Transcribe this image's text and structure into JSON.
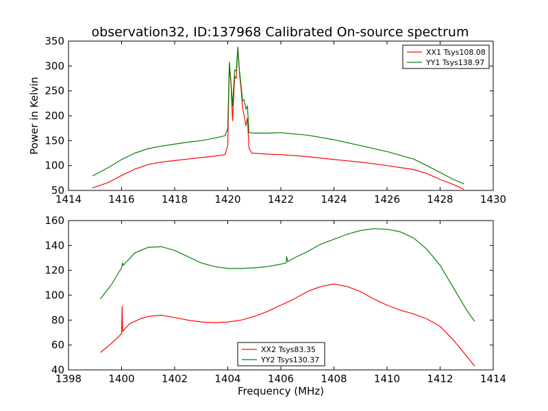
{
  "title": "observation32, ID:137968 Calibrated On-source spectrum",
  "chart_data": [
    {
      "type": "line",
      "xlabel": "",
      "ylabel": "Power in Kelvin",
      "xlim": [
        1414,
        1430
      ],
      "ylim": [
        50,
        350
      ],
      "xticks": [
        "1414",
        "1416",
        "1418",
        "1420",
        "1422",
        "1424",
        "1426",
        "1428",
        "1430"
      ],
      "yticks": [
        "50",
        "100",
        "150",
        "200",
        "250",
        "300",
        "350"
      ],
      "legend_position": "top-right",
      "series": [
        {
          "name": "XX1 Tsys108.08",
          "color": "#ff0000",
          "points": [
            [
              1414.9,
              55
            ],
            [
              1415.5,
              66
            ],
            [
              1416,
              80
            ],
            [
              1416.5,
              93
            ],
            [
              1417,
              102
            ],
            [
              1417.5,
              107
            ],
            [
              1418,
              110
            ],
            [
              1418.5,
              113
            ],
            [
              1419,
              116
            ],
            [
              1419.5,
              119
            ],
            [
              1419.9,
              122
            ],
            [
              1420.0,
              140
            ],
            [
              1420.06,
              300
            ],
            [
              1420.12,
              265
            ],
            [
              1420.18,
              190
            ],
            [
              1420.26,
              280
            ],
            [
              1420.32,
              275
            ],
            [
              1420.38,
              338
            ],
            [
              1420.44,
              285
            ],
            [
              1420.5,
              255
            ],
            [
              1420.56,
              215
            ],
            [
              1420.62,
              200
            ],
            [
              1420.68,
              180
            ],
            [
              1420.74,
              195
            ],
            [
              1420.8,
              135
            ],
            [
              1420.9,
              125
            ],
            [
              1421.5,
              123
            ],
            [
              1422,
              122
            ],
            [
              1423,
              118
            ],
            [
              1424,
              112
            ],
            [
              1425,
              107
            ],
            [
              1426,
              100
            ],
            [
              1427,
              92
            ],
            [
              1427.5,
              84
            ],
            [
              1428,
              72
            ],
            [
              1428.5,
              62
            ],
            [
              1428.9,
              52
            ]
          ]
        },
        {
          "name": "YY1 Tsys138.97",
          "color": "#008000",
          "points": [
            [
              1414.9,
              79
            ],
            [
              1415.5,
              96
            ],
            [
              1416,
              112
            ],
            [
              1416.5,
              125
            ],
            [
              1417,
              134
            ],
            [
              1417.5,
              139
            ],
            [
              1418,
              143
            ],
            [
              1418.5,
              147
            ],
            [
              1419,
              150
            ],
            [
              1419.5,
              155
            ],
            [
              1419.9,
              160
            ],
            [
              1420.0,
              175
            ],
            [
              1420.06,
              308
            ],
            [
              1420.12,
              270
            ],
            [
              1420.18,
              220
            ],
            [
              1420.26,
              292
            ],
            [
              1420.32,
              290
            ],
            [
              1420.38,
              338
            ],
            [
              1420.44,
              290
            ],
            [
              1420.5,
              262
            ],
            [
              1420.56,
              230
            ],
            [
              1420.62,
              232
            ],
            [
              1420.68,
              213
            ],
            [
              1420.74,
              220
            ],
            [
              1420.8,
              166
            ],
            [
              1421,
              165
            ],
            [
              1421.5,
              165
            ],
            [
              1422,
              166
            ],
            [
              1423,
              161
            ],
            [
              1424,
              152
            ],
            [
              1425,
              140
            ],
            [
              1426,
              128
            ],
            [
              1427,
              113
            ],
            [
              1427.5,
              100
            ],
            [
              1428,
              86
            ],
            [
              1428.5,
              72
            ],
            [
              1428.9,
              63
            ]
          ]
        }
      ]
    },
    {
      "type": "line",
      "xlabel": "Frequency (MHz)",
      "ylabel": "",
      "xlim": [
        1398,
        1414
      ],
      "ylim": [
        40,
        160
      ],
      "xticks": [
        "1398",
        "1400",
        "1402",
        "1404",
        "1406",
        "1408",
        "1410",
        "1412",
        "1414"
      ],
      "yticks": [
        "40",
        "60",
        "80",
        "100",
        "120",
        "140",
        "160"
      ],
      "legend_position": "bottom-center",
      "series": [
        {
          "name": "XX2 Tsys83.35",
          "color": "#ff0000",
          "points": [
            [
              1399.2,
              54
            ],
            [
              1399.6,
              61
            ],
            [
              1400,
              69
            ],
            [
              1400.02,
              91
            ],
            [
              1400.04,
              71
            ],
            [
              1400.3,
              77
            ],
            [
              1400.7,
              81
            ],
            [
              1401,
              83
            ],
            [
              1401.5,
              84
            ],
            [
              1402,
              82
            ],
            [
              1402.5,
              80
            ],
            [
              1403,
              78.5
            ],
            [
              1403.5,
              78
            ],
            [
              1404,
              78.5
            ],
            [
              1404.5,
              80
            ],
            [
              1405,
              83
            ],
            [
              1405.5,
              87
            ],
            [
              1406,
              92
            ],
            [
              1406.5,
              97
            ],
            [
              1407,
              103
            ],
            [
              1407.5,
              107
            ],
            [
              1408,
              109
            ],
            [
              1408.5,
              107
            ],
            [
              1409,
              103
            ],
            [
              1409.5,
              97
            ],
            [
              1410,
              92
            ],
            [
              1410.5,
              88
            ],
            [
              1411,
              85
            ],
            [
              1411.5,
              81
            ],
            [
              1412,
              75
            ],
            [
              1412.5,
              64
            ],
            [
              1413,
              51
            ],
            [
              1413.3,
              43
            ]
          ]
        },
        {
          "name": "YY2 Tsys130.37",
          "color": "#008000",
          "points": [
            [
              1399.2,
              97
            ],
            [
              1399.6,
              108
            ],
            [
              1400,
              122
            ],
            [
              1400.03,
              126
            ],
            [
              1400.06,
              124
            ],
            [
              1400.5,
              134
            ],
            [
              1401,
              138.5
            ],
            [
              1401.5,
              139
            ],
            [
              1402,
              136
            ],
            [
              1402.5,
              131
            ],
            [
              1403,
              126
            ],
            [
              1403.5,
              123
            ],
            [
              1404,
              121.5
            ],
            [
              1404.5,
              121.5
            ],
            [
              1405,
              122
            ],
            [
              1405.5,
              123
            ],
            [
              1406,
              125
            ],
            [
              1406.2,
              126
            ],
            [
              1406.22,
              131
            ],
            [
              1406.26,
              127
            ],
            [
              1406.5,
              130
            ],
            [
              1407,
              135
            ],
            [
              1407.5,
              141
            ],
            [
              1408,
              145
            ],
            [
              1408.5,
              149
            ],
            [
              1409,
              152
            ],
            [
              1409.5,
              153.5
            ],
            [
              1410,
              153
            ],
            [
              1410.5,
              151
            ],
            [
              1411,
              146
            ],
            [
              1411.5,
              137
            ],
            [
              1412,
              124
            ],
            [
              1412.5,
              106
            ],
            [
              1413,
              88
            ],
            [
              1413.3,
              79
            ]
          ]
        }
      ]
    }
  ]
}
